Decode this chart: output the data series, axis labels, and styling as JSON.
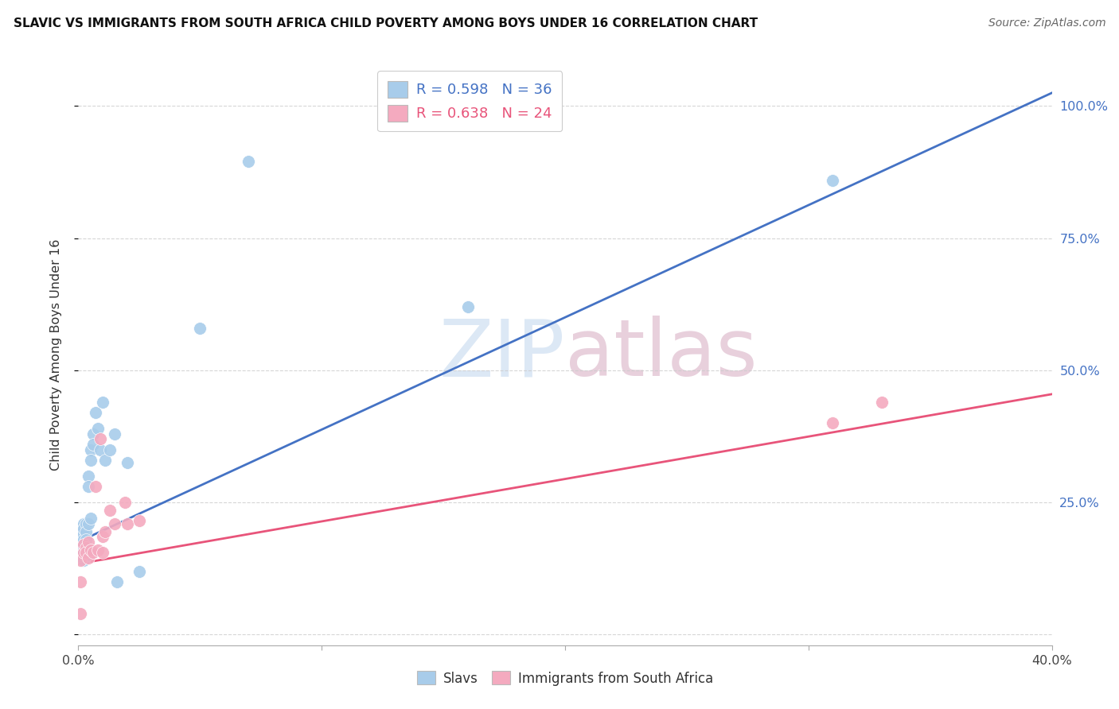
{
  "title": "SLAVIC VS IMMIGRANTS FROM SOUTH AFRICA CHILD POVERTY AMONG BOYS UNDER 16 CORRELATION CHART",
  "source": "Source: ZipAtlas.com",
  "ylabel": "Child Poverty Among Boys Under 16",
  "xlim": [
    0.0,
    0.4
  ],
  "ylim": [
    -0.02,
    1.08
  ],
  "slavs_R": "0.598",
  "slavs_N": "36",
  "immigrants_R": "0.638",
  "immigrants_N": "24",
  "slavs_color": "#A8CCEA",
  "immigrants_color": "#F4AABF",
  "slavs_line_color": "#4472C4",
  "immigrants_line_color": "#E8547A",
  "legend_label_slavs": "Slavs",
  "legend_label_immigrants": "Immigrants from South Africa",
  "slavs_x": [
    0.001,
    0.001,
    0.001,
    0.001,
    0.002,
    0.002,
    0.002,
    0.002,
    0.002,
    0.003,
    0.003,
    0.003,
    0.003,
    0.003,
    0.004,
    0.004,
    0.004,
    0.005,
    0.005,
    0.005,
    0.006,
    0.006,
    0.007,
    0.008,
    0.009,
    0.01,
    0.011,
    0.013,
    0.015,
    0.016,
    0.02,
    0.025,
    0.05,
    0.07,
    0.16,
    0.31
  ],
  "slavs_y": [
    0.2,
    0.19,
    0.17,
    0.15,
    0.21,
    0.2,
    0.18,
    0.155,
    0.14,
    0.21,
    0.195,
    0.18,
    0.165,
    0.15,
    0.3,
    0.28,
    0.21,
    0.35,
    0.33,
    0.22,
    0.38,
    0.36,
    0.42,
    0.39,
    0.35,
    0.44,
    0.33,
    0.35,
    0.38,
    0.1,
    0.325,
    0.12,
    0.58,
    0.895,
    0.62,
    0.86
  ],
  "immigrants_x": [
    0.001,
    0.001,
    0.001,
    0.002,
    0.002,
    0.003,
    0.003,
    0.004,
    0.004,
    0.005,
    0.006,
    0.007,
    0.008,
    0.009,
    0.01,
    0.01,
    0.011,
    0.013,
    0.015,
    0.019,
    0.02,
    0.025,
    0.31,
    0.33
  ],
  "immigrants_y": [
    0.14,
    0.1,
    0.04,
    0.17,
    0.155,
    0.165,
    0.155,
    0.175,
    0.145,
    0.16,
    0.155,
    0.28,
    0.16,
    0.37,
    0.185,
    0.155,
    0.195,
    0.235,
    0.21,
    0.25,
    0.21,
    0.215,
    0.4,
    0.44
  ],
  "slavs_line_x": [
    -0.005,
    0.4
  ],
  "slavs_line_y": [
    0.165,
    1.025
  ],
  "immigrants_line_x": [
    -0.005,
    0.4
  ],
  "immigrants_line_y": [
    0.13,
    0.455
  ]
}
